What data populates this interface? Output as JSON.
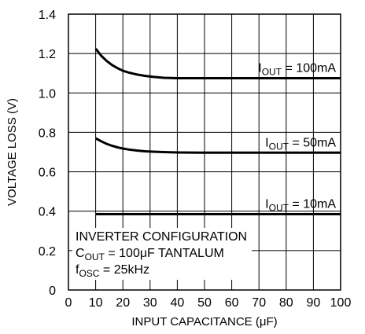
{
  "chart_data": {
    "type": "line",
    "title": "",
    "xlabel": "INPUT CAPACITANCE (μF)",
    "ylabel": "VOLTAGE LOSS (V)",
    "xlim": [
      0,
      100
    ],
    "ylim": [
      0,
      1.4
    ],
    "x_ticks": [
      "0",
      "10",
      "20",
      "30",
      "40",
      "50",
      "60",
      "70",
      "80",
      "90",
      "100"
    ],
    "y_ticks": [
      "0",
      "0.2",
      "0.4",
      "0.6",
      "0.8",
      "1.0",
      "1.2",
      "1.4"
    ],
    "grid": true,
    "series": [
      {
        "label_main": "I",
        "label_sub": "OUT",
        "label_rest": " = 100mA",
        "x": [
          10,
          12,
          14,
          16,
          18,
          20,
          22,
          25,
          28,
          31,
          35,
          40,
          50,
          60,
          70,
          80,
          90,
          100
        ],
        "y": [
          1.225,
          1.19,
          1.163,
          1.142,
          1.126,
          1.113,
          1.104,
          1.094,
          1.087,
          1.082,
          1.077,
          1.075,
          1.075,
          1.075,
          1.075,
          1.075,
          1.075,
          1.075
        ]
      },
      {
        "label_main": "I",
        "label_sub": "OUT",
        "label_rest": " = 50mA",
        "x": [
          10,
          12,
          14,
          16,
          18,
          20,
          22,
          25,
          28,
          31,
          35,
          40,
          50,
          60,
          70,
          80,
          90,
          100
        ],
        "y": [
          0.77,
          0.755,
          0.742,
          0.732,
          0.724,
          0.718,
          0.713,
          0.708,
          0.704,
          0.702,
          0.7,
          0.698,
          0.697,
          0.697,
          0.697,
          0.697,
          0.697,
          0.697
        ]
      },
      {
        "label_main": "I",
        "label_sub": "OUT",
        "label_rest": " = 10mA",
        "x": [
          10,
          100
        ],
        "y": [
          0.385,
          0.385
        ]
      }
    ],
    "annotation_lines": [
      {
        "main": "INVERTER CONFIGURATION",
        "sub": "",
        "rest": ""
      },
      {
        "main": "C",
        "sub": "OUT",
        "rest": " = 100μF TANTALUM"
      },
      {
        "main": "f",
        "sub": "OSC",
        "rest": " = 25kHz"
      }
    ]
  }
}
